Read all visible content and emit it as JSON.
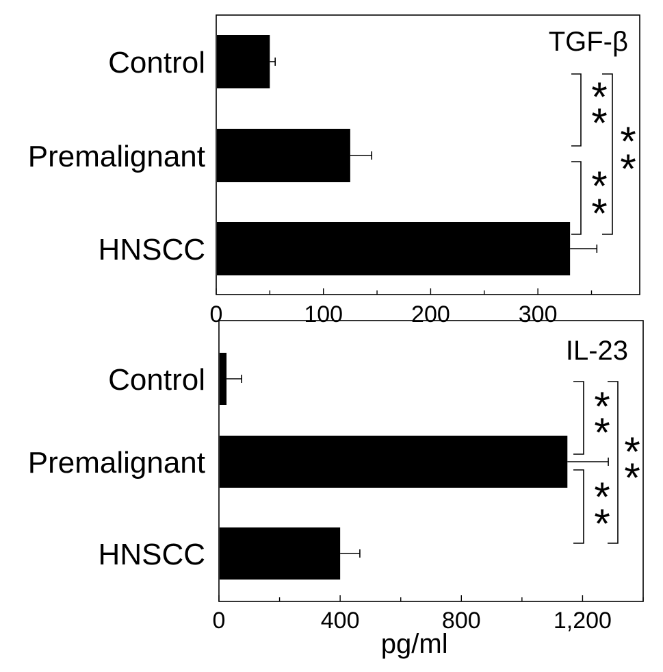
{
  "chart_data": [
    {
      "type": "bar",
      "orientation": "horizontal",
      "title": "TGF-β",
      "categories": [
        "Control",
        "Premalignant",
        "HNSCC"
      ],
      "values": [
        50,
        125,
        330
      ],
      "errors": [
        5,
        20,
        25
      ],
      "xlim": [
        0,
        395
      ],
      "xticks": [
        0,
        100,
        200,
        300
      ],
      "tick_labels": [
        "0",
        "100",
        "200",
        "300"
      ],
      "significance": [
        {
          "between": [
            "Control",
            "Premalignant"
          ],
          "label": "**"
        },
        {
          "between": [
            "Premalignant",
            "HNSCC"
          ],
          "label": "**"
        },
        {
          "between": [
            "Control",
            "HNSCC"
          ],
          "label": "**"
        }
      ]
    },
    {
      "type": "bar",
      "orientation": "horizontal",
      "title": "IL-23",
      "categories": [
        "Control",
        "Premalignant",
        "HNSCC"
      ],
      "values": [
        25,
        1150,
        400
      ],
      "errors": [
        50,
        135,
        65
      ],
      "xlim": [
        0,
        1400
      ],
      "xticks": [
        0,
        400,
        800,
        1200
      ],
      "tick_labels": [
        "0",
        "400",
        "800",
        "1,200"
      ],
      "xlabel": "pg/ml",
      "significance": [
        {
          "between": [
            "Control",
            "Premalignant"
          ],
          "label": "**"
        },
        {
          "between": [
            "Premalignant",
            "HNSCC"
          ],
          "label": "**"
        },
        {
          "between": [
            "Control",
            "HNSCC"
          ],
          "label": "**"
        }
      ]
    }
  ]
}
